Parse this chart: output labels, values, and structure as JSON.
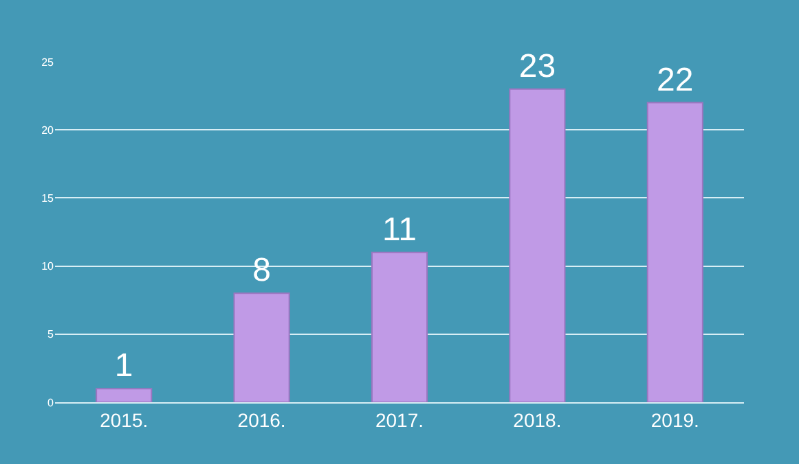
{
  "chart_data": {
    "type": "bar",
    "categories": [
      "2015.",
      "2016.",
      "2017.",
      "2018.",
      "2019."
    ],
    "values": [
      1,
      8,
      11,
      23,
      22
    ],
    "color": "#c09ae6",
    "ylim": [
      0,
      25
    ],
    "yticks": [
      0,
      5,
      10,
      15,
      20,
      25
    ],
    "grid": "y",
    "data_labels": true
  }
}
